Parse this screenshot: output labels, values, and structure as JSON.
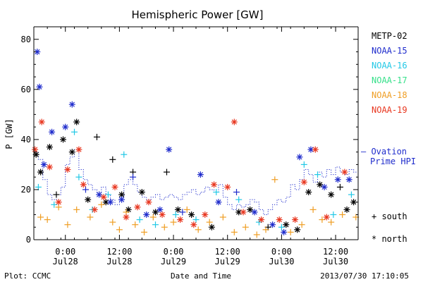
{
  "chart_data": {
    "type": "scatter",
    "title": "Hemispheric Power [GW]",
    "ylabel": "P [GW]",
    "xlabel": "Date and Time",
    "ylim": [
      0,
      85
    ],
    "xlim": [
      "2013-07-27 17:00",
      "2013-07-30 17:00"
    ],
    "x_ticks": [
      {
        "at": "2013-07-28 00:00",
        "label1": "0:00",
        "label2": "Jul28"
      },
      {
        "at": "2013-07-28 12:00",
        "label1": "12:00",
        "label2": "Jul28"
      },
      {
        "at": "2013-07-29 00:00",
        "label1": "0:00",
        "label2": "Jul29"
      },
      {
        "at": "2013-07-29 12:00",
        "label1": "12:00",
        "label2": "Jul29"
      },
      {
        "at": "2013-07-30 00:00",
        "label1": "0:00",
        "label2": "Jul30"
      },
      {
        "at": "2013-07-30 12:00",
        "label1": "12:00",
        "label2": "Jul30"
      }
    ],
    "y_ticks": [
      0,
      20,
      40,
      60,
      80
    ],
    "series": [
      {
        "name": "METP-02",
        "color": "#000000",
        "points": [
          [
            "2013-07-27 17:30",
            34,
            "north"
          ],
          [
            "2013-07-27 18:30",
            27,
            "north"
          ],
          [
            "2013-07-27 20:30",
            37,
            "north"
          ],
          [
            "2013-07-27 22:00",
            18,
            "south"
          ],
          [
            "2013-07-27 23:30",
            40,
            "north"
          ],
          [
            "2013-07-28 01:30",
            35,
            "north"
          ],
          [
            "2013-07-28 02:30",
            47,
            "north"
          ],
          [
            "2013-07-28 05:00",
            16,
            "north"
          ],
          [
            "2013-07-28 07:00",
            41,
            "south"
          ],
          [
            "2013-07-28 09:00",
            15,
            "north"
          ],
          [
            "2013-07-28 10:30",
            32,
            "south"
          ],
          [
            "2013-07-28 12:30",
            18,
            "north"
          ],
          [
            "2013-07-28 14:00",
            12,
            "north"
          ],
          [
            "2013-07-28 15:00",
            27,
            "south"
          ],
          [
            "2013-07-28 17:00",
            19,
            "north"
          ],
          [
            "2013-07-28 20:00",
            11,
            "north"
          ],
          [
            "2013-07-28 22:30",
            27,
            "south"
          ],
          [
            "2013-07-29 01:00",
            12,
            "north"
          ],
          [
            "2013-07-29 04:00",
            10,
            "north"
          ],
          [
            "2013-07-29 08:30",
            5,
            "north"
          ],
          [
            "2013-07-29 14:30",
            11,
            "north"
          ],
          [
            "2013-07-29 17:00",
            12,
            "north"
          ],
          [
            "2013-07-29 21:00",
            5,
            "south"
          ],
          [
            "2013-07-30 01:00",
            6,
            "north"
          ],
          [
            "2013-07-30 03:30",
            4,
            "north"
          ],
          [
            "2013-07-30 06:00",
            19,
            "north"
          ],
          [
            "2013-07-30 08:30",
            22,
            "north"
          ],
          [
            "2013-07-30 11:00",
            18,
            "north"
          ],
          [
            "2013-07-30 13:00",
            21,
            "south"
          ],
          [
            "2013-07-30 14:30",
            12,
            "north"
          ],
          [
            "2013-07-30 16:00",
            15,
            "north"
          ]
        ]
      },
      {
        "name": "NOAA-15",
        "color": "#1f2ccc",
        "points": [
          [
            "2013-07-27 17:45",
            75,
            "north"
          ],
          [
            "2013-07-27 18:15",
            61,
            "north"
          ],
          [
            "2013-07-27 19:15",
            30,
            "north"
          ],
          [
            "2013-07-27 21:00",
            43,
            "north"
          ],
          [
            "2013-07-28 00:00",
            45,
            "north"
          ],
          [
            "2013-07-28 01:30",
            54,
            "north"
          ],
          [
            "2013-07-28 04:30",
            20,
            "south"
          ],
          [
            "2013-07-28 07:30",
            18,
            "north"
          ],
          [
            "2013-07-28 10:00",
            15,
            "north"
          ],
          [
            "2013-07-28 12:30",
            16,
            "north"
          ],
          [
            "2013-07-28 15:00",
            25,
            "south"
          ],
          [
            "2013-07-28 18:00",
            10,
            "north"
          ],
          [
            "2013-07-28 21:00",
            12,
            "north"
          ],
          [
            "2013-07-28 23:00",
            36,
            "north"
          ],
          [
            "2013-07-29 02:00",
            11,
            "south"
          ],
          [
            "2013-07-29 06:00",
            26,
            "north"
          ],
          [
            "2013-07-29 10:00",
            15,
            "north"
          ],
          [
            "2013-07-29 14:00",
            19,
            "south"
          ],
          [
            "2013-07-29 18:00",
            11,
            "north"
          ],
          [
            "2013-07-29 22:00",
            6,
            "north"
          ],
          [
            "2013-07-30 00:30",
            3,
            "north"
          ],
          [
            "2013-07-30 04:00",
            33,
            "north"
          ],
          [
            "2013-07-30 06:30",
            36,
            "north"
          ],
          [
            "2013-07-30 09:30",
            21,
            "north"
          ],
          [
            "2013-07-30 12:30",
            24,
            "north"
          ],
          [
            "2013-07-30 15:00",
            24,
            "north"
          ]
        ]
      },
      {
        "name": "NOAA-16",
        "color": "#22c8e6",
        "points": [
          [
            "2013-07-27 18:00",
            21,
            "south"
          ],
          [
            "2013-07-27 21:30",
            14,
            "south"
          ],
          [
            "2013-07-28 02:00",
            43,
            "south"
          ],
          [
            "2013-07-28 03:00",
            25,
            "south"
          ],
          [
            "2013-07-28 06:00",
            12,
            "south"
          ],
          [
            "2013-07-28 09:30",
            18,
            "south"
          ],
          [
            "2013-07-28 13:00",
            34,
            "south"
          ],
          [
            "2013-07-28 16:30",
            8,
            "south"
          ],
          [
            "2013-07-28 20:00",
            6,
            "south"
          ],
          [
            "2013-07-29 00:30",
            10,
            "south"
          ],
          [
            "2013-07-29 05:00",
            8,
            "south"
          ],
          [
            "2013-07-29 09:30",
            19,
            "south"
          ],
          [
            "2013-07-29 14:30",
            16,
            "south"
          ],
          [
            "2013-07-29 19:00",
            7,
            "south"
          ],
          [
            "2013-07-30 00:00",
            5,
            "south"
          ],
          [
            "2013-07-30 05:00",
            30,
            "south"
          ],
          [
            "2013-07-30 08:00",
            26,
            "south"
          ],
          [
            "2013-07-30 11:30",
            10,
            "south"
          ],
          [
            "2013-07-30 15:30",
            18,
            "south"
          ]
        ]
      },
      {
        "name": "NOAA-17",
        "color": "#36e08a",
        "points": []
      },
      {
        "name": "NOAA-18",
        "color": "#ef9e24",
        "points": [
          [
            "2013-07-27 18:30",
            9,
            "south"
          ],
          [
            "2013-07-27 20:00",
            8,
            "south"
          ],
          [
            "2013-07-27 22:30",
            13,
            "south"
          ],
          [
            "2013-07-28 00:30",
            6,
            "south"
          ],
          [
            "2013-07-28 02:30",
            12,
            "south"
          ],
          [
            "2013-07-28 05:30",
            9,
            "south"
          ],
          [
            "2013-07-28 08:00",
            14,
            "south"
          ],
          [
            "2013-07-28 10:30",
            7,
            "south"
          ],
          [
            "2013-07-28 12:00",
            4,
            "south"
          ],
          [
            "2013-07-28 13:30",
            11,
            "south"
          ],
          [
            "2013-07-28 15:30",
            6,
            "south"
          ],
          [
            "2013-07-28 17:30",
            3,
            "south"
          ],
          [
            "2013-07-28 19:30",
            9,
            "south"
          ],
          [
            "2013-07-28 22:00",
            5,
            "south"
          ],
          [
            "2013-07-29 00:00",
            7,
            "south"
          ],
          [
            "2013-07-29 03:00",
            12,
            "south"
          ],
          [
            "2013-07-29 05:30",
            4,
            "south"
          ],
          [
            "2013-07-29 08:00",
            7,
            "south"
          ],
          [
            "2013-07-29 11:00",
            9,
            "south"
          ],
          [
            "2013-07-29 13:30",
            3,
            "south"
          ],
          [
            "2013-07-29 16:00",
            5,
            "south"
          ],
          [
            "2013-07-29 18:30",
            2,
            "south"
          ],
          [
            "2013-07-29 20:30",
            4,
            "south"
          ],
          [
            "2013-07-29 22:30",
            24,
            "south"
          ],
          [
            "2013-07-30 02:00",
            3,
            "south"
          ],
          [
            "2013-07-30 04:30",
            6,
            "south"
          ],
          [
            "2013-07-30 07:00",
            12,
            "south"
          ],
          [
            "2013-07-30 09:00",
            8,
            "south"
          ],
          [
            "2013-07-30 11:00",
            7,
            "south"
          ],
          [
            "2013-07-30 13:30",
            10,
            "south"
          ],
          [
            "2013-07-30 16:30",
            9,
            "south"
          ]
        ]
      },
      {
        "name": "NOAA-19",
        "color": "#e8361f",
        "points": [
          [
            "2013-07-27 17:15",
            36,
            "north"
          ],
          [
            "2013-07-27 18:45",
            47,
            "north"
          ],
          [
            "2013-07-27 20:30",
            29,
            "north"
          ],
          [
            "2013-07-27 22:30",
            15,
            "north"
          ],
          [
            "2013-07-28 00:30",
            28,
            "north"
          ],
          [
            "2013-07-28 03:00",
            36,
            "north"
          ],
          [
            "2013-07-28 04:00",
            22,
            "north"
          ],
          [
            "2013-07-28 06:30",
            12,
            "north"
          ],
          [
            "2013-07-28 08:30",
            17,
            "north"
          ],
          [
            "2013-07-28 11:00",
            21,
            "north"
          ],
          [
            "2013-07-28 13:30",
            9,
            "north"
          ],
          [
            "2013-07-28 16:00",
            13,
            "north"
          ],
          [
            "2013-07-28 18:30",
            15,
            "north"
          ],
          [
            "2013-07-28 21:30",
            10,
            "north"
          ],
          [
            "2013-07-29 01:30",
            8,
            "north"
          ],
          [
            "2013-07-29 04:30",
            6,
            "north"
          ],
          [
            "2013-07-29 07:00",
            10,
            "north"
          ],
          [
            "2013-07-29 09:00",
            22,
            "north"
          ],
          [
            "2013-07-29 12:00",
            21,
            "north"
          ],
          [
            "2013-07-29 13:30",
            47,
            "north"
          ],
          [
            "2013-07-29 15:30",
            11,
            "north"
          ],
          [
            "2013-07-29 19:30",
            8,
            "north"
          ],
          [
            "2013-07-29 23:30",
            8,
            "north"
          ],
          [
            "2013-07-30 03:00",
            8,
            "north"
          ],
          [
            "2013-07-30 05:00",
            23,
            "north"
          ],
          [
            "2013-07-30 07:30",
            36,
            "north"
          ],
          [
            "2013-07-30 10:00",
            9,
            "north"
          ],
          [
            "2013-07-30 14:00",
            27,
            "north"
          ]
        ]
      }
    ],
    "ovation": {
      "name": "Ovation Prime HPI",
      "color": "#1f2ccc",
      "points": [
        [
          "2013-07-27 17:00",
          35
        ],
        [
          "2013-07-27 18:00",
          32
        ],
        [
          "2013-07-27 19:00",
          24
        ],
        [
          "2013-07-27 20:00",
          18
        ],
        [
          "2013-07-27 21:00",
          16
        ],
        [
          "2013-07-27 22:00",
          18
        ],
        [
          "2013-07-27 23:00",
          21
        ],
        [
          "2013-07-28 00:00",
          30
        ],
        [
          "2013-07-28 01:00",
          33
        ],
        [
          "2013-07-28 02:00",
          36
        ],
        [
          "2013-07-28 03:00",
          28
        ],
        [
          "2013-07-28 04:00",
          24
        ],
        [
          "2013-07-28 05:00",
          22
        ],
        [
          "2013-07-28 06:00",
          20
        ],
        [
          "2013-07-28 07:00",
          19
        ],
        [
          "2013-07-28 08:00",
          21
        ],
        [
          "2013-07-28 09:00",
          18
        ],
        [
          "2013-07-28 10:00",
          16
        ],
        [
          "2013-07-28 11:00",
          14
        ],
        [
          "2013-07-28 12:00",
          17
        ],
        [
          "2013-07-28 13:00",
          22
        ],
        [
          "2013-07-28 14:00",
          24
        ],
        [
          "2013-07-28 15:00",
          22
        ],
        [
          "2013-07-28 16:00",
          19
        ],
        [
          "2013-07-28 17:00",
          17
        ],
        [
          "2013-07-28 18:00",
          16
        ],
        [
          "2013-07-28 19:00",
          17
        ],
        [
          "2013-07-28 20:00",
          18
        ],
        [
          "2013-07-28 21:00",
          16
        ],
        [
          "2013-07-28 22:00",
          17
        ],
        [
          "2013-07-28 23:00",
          18
        ],
        [
          "2013-07-29 00:00",
          17
        ],
        [
          "2013-07-29 01:00",
          16
        ],
        [
          "2013-07-29 02:00",
          18
        ],
        [
          "2013-07-29 03:00",
          19
        ],
        [
          "2013-07-29 04:00",
          20
        ],
        [
          "2013-07-29 05:00",
          18
        ],
        [
          "2013-07-29 06:00",
          19
        ],
        [
          "2013-07-29 07:00",
          21
        ],
        [
          "2013-07-29 08:00",
          20
        ],
        [
          "2013-07-29 09:00",
          19
        ],
        [
          "2013-07-29 10:00",
          22
        ],
        [
          "2013-07-29 11:00",
          17
        ],
        [
          "2013-07-29 12:00",
          14
        ],
        [
          "2013-07-29 13:00",
          12
        ],
        [
          "2013-07-29 14:00",
          14
        ],
        [
          "2013-07-29 15:00",
          13
        ],
        [
          "2013-07-29 16:00",
          14
        ],
        [
          "2013-07-29 17:00",
          16
        ],
        [
          "2013-07-29 18:00",
          15
        ],
        [
          "2013-07-29 19:00",
          12
        ],
        [
          "2013-07-29 20:00",
          10
        ],
        [
          "2013-07-29 21:00",
          12
        ],
        [
          "2013-07-29 22:00",
          14
        ],
        [
          "2013-07-29 23:00",
          16
        ],
        [
          "2013-07-30 00:00",
          15
        ],
        [
          "2013-07-30 01:00",
          17
        ],
        [
          "2013-07-30 02:00",
          22
        ],
        [
          "2013-07-30 03:00",
          20
        ],
        [
          "2013-07-30 04:00",
          24
        ],
        [
          "2013-07-30 05:00",
          28
        ],
        [
          "2013-07-30 06:00",
          26
        ],
        [
          "2013-07-30 07:00",
          23
        ],
        [
          "2013-07-30 08:00",
          27
        ],
        [
          "2013-07-30 09:00",
          25
        ],
        [
          "2013-07-30 10:00",
          28
        ],
        [
          "2013-07-30 11:00",
          26
        ],
        [
          "2013-07-30 12:00",
          29
        ],
        [
          "2013-07-30 13:00",
          27
        ],
        [
          "2013-07-30 14:00",
          26
        ],
        [
          "2013-07-30 15:00",
          28
        ],
        [
          "2013-07-30 16:00",
          27
        ],
        [
          "2013-07-30 17:00",
          26
        ]
      ]
    },
    "legend": {
      "placement": "right",
      "ovation_label_line1": "— Ovation",
      "ovation_label_line2": "Prime HPI",
      "south_label": "+ south",
      "north_label": "* north"
    }
  },
  "footer": {
    "plot_label": "Plot: CCMC",
    "xlabel": "Date and Time",
    "timestamp": "2013/07/30 17:10:05"
  }
}
